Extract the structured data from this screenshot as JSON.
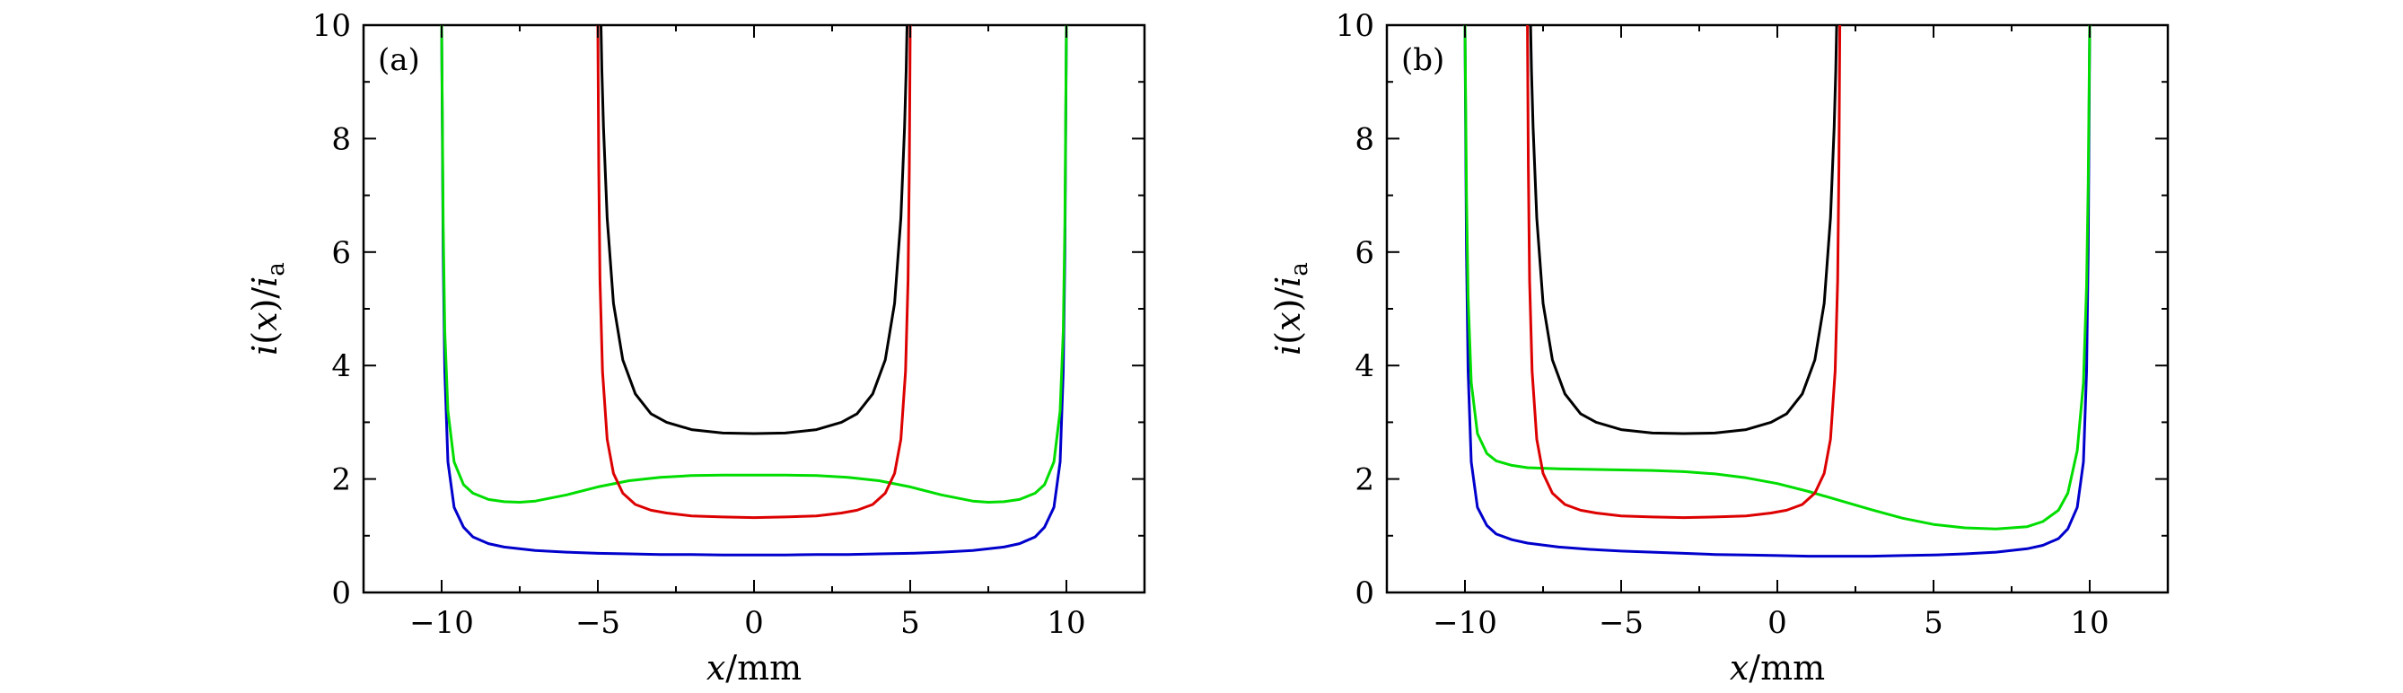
{
  "chart_data": [
    {
      "type": "line",
      "panel_label": "(a)",
      "xlabel": "x/mm",
      "ylabel": "i(x)/i_a",
      "xlim": [
        -12.5,
        12.5
      ],
      "ylim": [
        0,
        10
      ],
      "x_ticks": [
        -10,
        -5,
        0,
        5,
        10
      ],
      "x_tick_labels": [
        "−10",
        "−5",
        "0",
        "5",
        "10"
      ],
      "y_ticks": [
        0,
        2,
        4,
        6,
        8,
        10
      ],
      "y_tick_labels": [
        "0",
        "2",
        "4",
        "6",
        "8",
        "10"
      ],
      "grid": false,
      "series": [
        {
          "color": "#0000cc",
          "x": [
            -10.0,
            -9.95,
            -9.9,
            -9.8,
            -9.6,
            -9.3,
            -9.0,
            -8.5,
            -8.0,
            -7.0,
            -6.0,
            -5.0,
            -4.0,
            -3.0,
            -2.0,
            -1.0,
            0.0,
            1.0,
            2.0,
            3.0,
            4.0,
            5.0,
            6.0,
            7.0,
            8.0,
            8.5,
            9.0,
            9.3,
            9.6,
            9.8,
            9.9,
            9.95,
            10.0
          ],
          "y": [
            10.0,
            6.0,
            3.9,
            2.3,
            1.5,
            1.15,
            0.98,
            0.86,
            0.8,
            0.74,
            0.71,
            0.69,
            0.68,
            0.67,
            0.67,
            0.66,
            0.66,
            0.66,
            0.67,
            0.67,
            0.68,
            0.69,
            0.71,
            0.74,
            0.8,
            0.86,
            0.98,
            1.15,
            1.5,
            2.3,
            3.9,
            6.0,
            10.0
          ]
        },
        {
          "color": "#00dd00",
          "x": [
            -10.0,
            -9.95,
            -9.9,
            -9.8,
            -9.6,
            -9.3,
            -9.0,
            -8.5,
            -8.0,
            -7.5,
            -7.0,
            -6.0,
            -5.0,
            -4.0,
            -3.0,
            -2.0,
            -1.0,
            0.0,
            1.0,
            2.0,
            3.0,
            4.0,
            5.0,
            6.0,
            7.0,
            7.5,
            8.0,
            8.5,
            9.0,
            9.3,
            9.6,
            9.8,
            9.9,
            9.95,
            10.0
          ],
          "y": [
            10.0,
            6.5,
            4.6,
            3.2,
            2.3,
            1.9,
            1.75,
            1.64,
            1.6,
            1.59,
            1.61,
            1.72,
            1.86,
            1.97,
            2.03,
            2.06,
            2.07,
            2.07,
            2.07,
            2.06,
            2.03,
            1.97,
            1.86,
            1.72,
            1.61,
            1.59,
            1.6,
            1.64,
            1.75,
            1.9,
            2.3,
            3.2,
            4.6,
            6.5,
            10.0
          ]
        },
        {
          "color": "#dd0000",
          "x": [
            -5.0,
            -4.97,
            -4.93,
            -4.85,
            -4.7,
            -4.5,
            -4.2,
            -3.8,
            -3.3,
            -2.8,
            -2.0,
            -1.0,
            0.0,
            1.0,
            2.0,
            2.8,
            3.3,
            3.8,
            4.2,
            4.5,
            4.7,
            4.85,
            4.93,
            4.97,
            5.0
          ],
          "y": [
            10.0,
            7.5,
            5.5,
            3.9,
            2.7,
            2.1,
            1.75,
            1.55,
            1.45,
            1.4,
            1.35,
            1.33,
            1.32,
            1.33,
            1.35,
            1.4,
            1.45,
            1.55,
            1.75,
            2.1,
            2.7,
            3.9,
            5.5,
            7.5,
            10.0
          ]
        },
        {
          "color": "#000000",
          "x": [
            -4.9,
            -4.87,
            -4.82,
            -4.7,
            -4.5,
            -4.2,
            -3.8,
            -3.3,
            -2.8,
            -2.0,
            -1.0,
            0.0,
            1.0,
            2.0,
            2.8,
            3.3,
            3.8,
            4.2,
            4.5,
            4.7,
            4.82,
            4.87,
            4.9
          ],
          "y": [
            10.0,
            9.2,
            8.2,
            6.6,
            5.1,
            4.1,
            3.5,
            3.15,
            3.0,
            2.87,
            2.81,
            2.8,
            2.81,
            2.87,
            3.0,
            3.15,
            3.5,
            4.1,
            5.1,
            6.6,
            8.2,
            9.2,
            10.0
          ]
        }
      ]
    },
    {
      "type": "line",
      "panel_label": "(b)",
      "xlabel": "x/mm",
      "ylabel": "i(x)/i_a",
      "xlim": [
        -12.5,
        12.5
      ],
      "ylim": [
        0,
        10
      ],
      "x_ticks": [
        -10,
        -5,
        0,
        5,
        10
      ],
      "x_tick_labels": [
        "−10",
        "−5",
        "0",
        "5",
        "10"
      ],
      "y_ticks": [
        0,
        2,
        4,
        6,
        8,
        10
      ],
      "y_tick_labels": [
        "0",
        "2",
        "4",
        "6",
        "8",
        "10"
      ],
      "grid": false,
      "series": [
        {
          "color": "#0000cc",
          "x": [
            -10.0,
            -9.95,
            -9.9,
            -9.8,
            -9.6,
            -9.3,
            -9.0,
            -8.5,
            -8.0,
            -7.0,
            -6.0,
            -5.0,
            -4.0,
            -3.0,
            -2.0,
            -1.0,
            0.0,
            1.0,
            2.0,
            3.0,
            4.0,
            5.0,
            6.0,
            7.0,
            8.0,
            8.5,
            9.0,
            9.3,
            9.6,
            9.8,
            9.9,
            9.95,
            10.0
          ],
          "y": [
            10.0,
            6.0,
            3.9,
            2.3,
            1.5,
            1.18,
            1.03,
            0.93,
            0.87,
            0.8,
            0.76,
            0.73,
            0.71,
            0.69,
            0.67,
            0.66,
            0.65,
            0.64,
            0.64,
            0.64,
            0.65,
            0.66,
            0.68,
            0.71,
            0.77,
            0.83,
            0.95,
            1.12,
            1.5,
            2.3,
            3.9,
            6.0,
            10.0
          ]
        },
        {
          "color": "#00dd00",
          "x": [
            -10.0,
            -9.95,
            -9.9,
            -9.8,
            -9.6,
            -9.3,
            -9.0,
            -8.5,
            -8.0,
            -7.0,
            -6.0,
            -5.0,
            -4.0,
            -3.0,
            -2.0,
            -1.0,
            0.0,
            1.0,
            2.0,
            3.0,
            4.0,
            5.0,
            6.0,
            7.0,
            8.0,
            8.5,
            9.0,
            9.3,
            9.6,
            9.8,
            9.9,
            9.95,
            10.0
          ],
          "y": [
            10.0,
            7.0,
            5.2,
            3.7,
            2.8,
            2.45,
            2.32,
            2.24,
            2.2,
            2.18,
            2.17,
            2.16,
            2.15,
            2.13,
            2.09,
            2.02,
            1.92,
            1.78,
            1.62,
            1.46,
            1.31,
            1.2,
            1.14,
            1.12,
            1.16,
            1.25,
            1.45,
            1.75,
            2.5,
            3.7,
            5.4,
            7.2,
            10.0
          ]
        },
        {
          "color": "#dd0000",
          "x": [
            -8.0,
            -7.97,
            -7.93,
            -7.85,
            -7.7,
            -7.5,
            -7.2,
            -6.8,
            -6.3,
            -5.8,
            -5.0,
            -4.0,
            -3.0,
            -2.0,
            -1.0,
            -0.2,
            0.3,
            0.8,
            1.2,
            1.5,
            1.7,
            1.85,
            1.93,
            1.97,
            2.0
          ],
          "y": [
            10.0,
            7.5,
            5.5,
            3.9,
            2.7,
            2.1,
            1.75,
            1.55,
            1.45,
            1.4,
            1.35,
            1.33,
            1.32,
            1.33,
            1.35,
            1.4,
            1.45,
            1.55,
            1.75,
            2.1,
            2.7,
            3.9,
            5.5,
            7.5,
            10.0
          ]
        },
        {
          "color": "#000000",
          "x": [
            -7.9,
            -7.87,
            -7.82,
            -7.7,
            -7.5,
            -7.2,
            -6.8,
            -6.3,
            -5.8,
            -5.0,
            -4.0,
            -3.0,
            -2.0,
            -1.0,
            -0.2,
            0.3,
            0.8,
            1.2,
            1.5,
            1.7,
            1.82,
            1.87,
            1.9
          ],
          "y": [
            10.0,
            9.2,
            8.2,
            6.6,
            5.1,
            4.1,
            3.5,
            3.15,
            3.0,
            2.87,
            2.81,
            2.8,
            2.81,
            2.87,
            3.0,
            3.15,
            3.5,
            4.1,
            5.1,
            6.6,
            8.2,
            9.2,
            10.0
          ]
        }
      ]
    }
  ]
}
